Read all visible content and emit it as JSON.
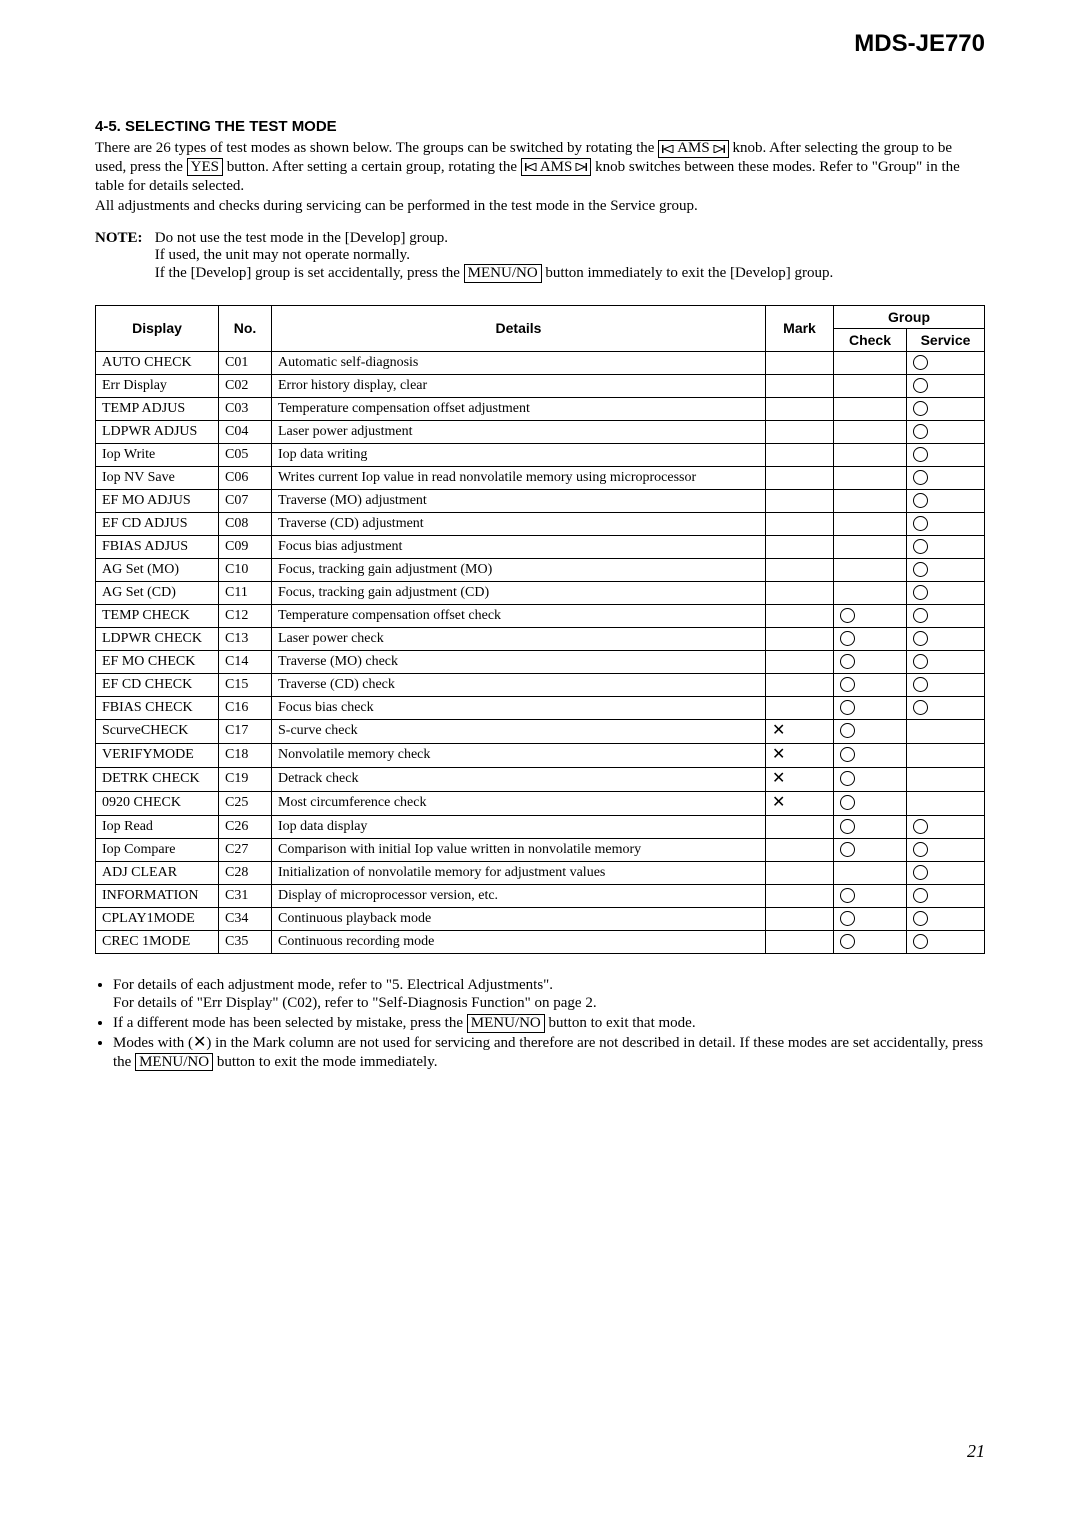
{
  "model": "MDS-JE770",
  "section_title": "4-5. SELECTING THE TEST MODE",
  "intro": {
    "p1a": "There are 26 types of test modes as shown below. The groups can be switched by rotating the ",
    "ams1": "AMS",
    "p1b": " knob. After selecting the group to be used, press the ",
    "yes": "YES",
    "p1c": " button. After setting a certain group, rotating the ",
    "ams2": "AMS",
    "p1d": " knob switches between these modes. Refer to \"Group\" in the table for details selected.",
    "p2": "All adjustments and checks during servicing can be performed in the test mode in the Service group."
  },
  "note": {
    "label": "NOTE:",
    "l1": "Do not use the test mode in the [Develop] group.",
    "l2": "If used, the unit may not operate normally.",
    "l3a": "If the [Develop] group is set accidentally, press the ",
    "menu1": "MENU/NO",
    "l3b": " button immediately to exit the [Develop] group."
  },
  "headers": {
    "display": "Display",
    "no": "No.",
    "details": "Details",
    "mark": "Mark",
    "group": "Group",
    "check": "Check",
    "service": "Service"
  },
  "rows": [
    {
      "d": "AUTO CHECK",
      "n": "C01",
      "det": "Automatic self-diagnosis",
      "m": "",
      "c": "",
      "s": "o"
    },
    {
      "d": "Err Display",
      "n": "C02",
      "det": "Error history display, clear",
      "m": "",
      "c": "",
      "s": "o"
    },
    {
      "d": "TEMP ADJUS",
      "n": "C03",
      "det": "Temperature compensation offset adjustment",
      "m": "",
      "c": "",
      "s": "o"
    },
    {
      "d": "LDPWR ADJUS",
      "n": "C04",
      "det": "Laser power adjustment",
      "m": "",
      "c": "",
      "s": "o"
    },
    {
      "d": "Iop Write",
      "n": "C05",
      "det": "Iop data writing",
      "m": "",
      "c": "",
      "s": "o"
    },
    {
      "d": "Iop NV Save",
      "n": "C06",
      "det": "Writes current Iop value in read nonvolatile memory using microprocessor",
      "m": "",
      "c": "",
      "s": "o"
    },
    {
      "d": "EF MO ADJUS",
      "n": "C07",
      "det": "Traverse (MO) adjustment",
      "m": "",
      "c": "",
      "s": "o"
    },
    {
      "d": "EF CD ADJUS",
      "n": "C08",
      "det": "Traverse (CD) adjustment",
      "m": "",
      "c": "",
      "s": "o"
    },
    {
      "d": "FBIAS ADJUS",
      "n": "C09",
      "det": "Focus bias adjustment",
      "m": "",
      "c": "",
      "s": "o"
    },
    {
      "d": "AG Set (MO)",
      "n": "C10",
      "det": "Focus, tracking gain adjustment (MO)",
      "m": "",
      "c": "",
      "s": "o"
    },
    {
      "d": "AG Set (CD)",
      "n": "C11",
      "det": "Focus, tracking gain adjustment (CD)",
      "m": "",
      "c": "",
      "s": "o"
    },
    {
      "d": "TEMP CHECK",
      "n": "C12",
      "det": "Temperature compensation offset check",
      "m": "",
      "c": "o",
      "s": "o"
    },
    {
      "d": "LDPWR CHECK",
      "n": "C13",
      "det": "Laser power check",
      "m": "",
      "c": "o",
      "s": "o"
    },
    {
      "d": "EF MO CHECK",
      "n": "C14",
      "det": "Traverse (MO) check",
      "m": "",
      "c": "o",
      "s": "o"
    },
    {
      "d": "EF CD CHECK",
      "n": "C15",
      "det": "Traverse (CD) check",
      "m": "",
      "c": "o",
      "s": "o"
    },
    {
      "d": "FBIAS CHECK",
      "n": "C16",
      "det": "Focus bias check",
      "m": "",
      "c": "o",
      "s": "o"
    },
    {
      "d": "ScurveCHECK",
      "n": "C17",
      "det": "S-curve check",
      "m": "x",
      "c": "o",
      "s": ""
    },
    {
      "d": "VERIFYMODE",
      "n": "C18",
      "det": "Nonvolatile memory check",
      "m": "x",
      "c": "o",
      "s": ""
    },
    {
      "d": "DETRK CHECK",
      "n": "C19",
      "det": "Detrack check",
      "m": "x",
      "c": "o",
      "s": ""
    },
    {
      "d": "0920 CHECK",
      "n": "C25",
      "det": "Most circumference check",
      "m": "x",
      "c": "o",
      "s": ""
    },
    {
      "d": "Iop Read",
      "n": "C26",
      "det": "Iop data display",
      "m": "",
      "c": "o",
      "s": "o"
    },
    {
      "d": "Iop Compare",
      "n": "C27",
      "det": "Comparison with initial Iop value written in nonvolatile memory",
      "m": "",
      "c": "o",
      "s": "o"
    },
    {
      "d": "ADJ CLEAR",
      "n": "C28",
      "det": "Initialization of nonvolatile memory for adjustment values",
      "m": "",
      "c": "",
      "s": "o"
    },
    {
      "d": "INFORMATION",
      "n": "C31",
      "det": "Display of microprocessor version, etc.",
      "m": "",
      "c": "o",
      "s": "o"
    },
    {
      "d": "CPLAY1MODE",
      "n": "C34",
      "det": "Continuous playback mode",
      "m": "",
      "c": "o",
      "s": "o"
    },
    {
      "d": "CREC 1MODE",
      "n": "C35",
      "det": "Continuous recording mode",
      "m": "",
      "c": "o",
      "s": "o"
    }
  ],
  "footnotes": {
    "f1a": "For details of each adjustment mode, refer to \"5. Electrical Adjustments\".",
    "f1b": "For details of \"Err Display\" (C02), refer to \"Self-Diagnosis Function\" on page 2.",
    "f2a": "If a different mode has been selected by mistake, press the ",
    "menu2": "MENU/NO",
    "f2b": " button to exit that mode.",
    "f3a": "Modes with (",
    "f3x": "✕",
    "f3b": ") in the Mark column are not used for servicing and therefore are not described in detail. If these modes are set accidentally, press the ",
    "menu3": "MENU/NO",
    "f3c": " button to exit the mode immediately."
  },
  "page_number": "21"
}
